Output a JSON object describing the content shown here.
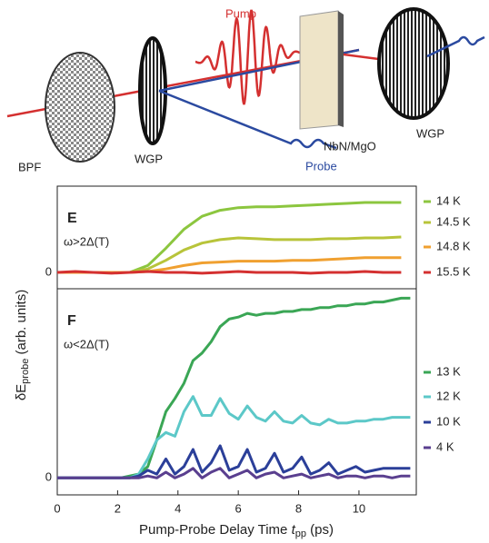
{
  "diagram": {
    "pump": "Pump",
    "bpf": "BPF",
    "wgp_left": "WGP",
    "sample": "NbN/MgO",
    "wgp_right": "WGP",
    "probe": "Probe"
  },
  "chart_data": [
    {
      "type": "line",
      "panel": "E",
      "annotation": "ω>2Δ(T)",
      "x": [
        0,
        0.6,
        1.2,
        1.8,
        2.4,
        3.0,
        3.6,
        4.2,
        4.8,
        5.4,
        6.0,
        6.6,
        7.2,
        7.8,
        8.4,
        9.0,
        9.6,
        10.2,
        10.8,
        11.4
      ],
      "xlim": [
        0,
        11.9
      ],
      "ylim": [
        -0.19,
        1
      ],
      "yticks": [
        0
      ],
      "series": [
        {
          "name": "14 K",
          "color": "#8cc63f",
          "values": [
            0,
            0,
            0,
            0,
            0,
            0.08,
            0.28,
            0.5,
            0.65,
            0.72,
            0.75,
            0.76,
            0.76,
            0.77,
            0.78,
            0.79,
            0.8,
            0.81,
            0.81,
            0.81
          ]
        },
        {
          "name": "14.5 K",
          "color": "#b8c43a",
          "values": [
            0,
            0,
            0,
            0,
            0,
            0.04,
            0.14,
            0.26,
            0.34,
            0.38,
            0.4,
            0.39,
            0.38,
            0.38,
            0.38,
            0.39,
            0.39,
            0.4,
            0.4,
            0.41
          ]
        },
        {
          "name": "14.8 K",
          "color": "#f0a030",
          "values": [
            0,
            0,
            0,
            0,
            0,
            0.01,
            0.04,
            0.08,
            0.11,
            0.12,
            0.13,
            0.13,
            0.13,
            0.14,
            0.14,
            0.15,
            0.16,
            0.17,
            0.17,
            0.17
          ]
        },
        {
          "name": "15.5 K",
          "color": "#d43030",
          "values": [
            0,
            0.01,
            0,
            -0.01,
            0,
            0.01,
            0,
            0,
            -0.01,
            0,
            0.01,
            0,
            0,
            0,
            -0.01,
            0,
            0,
            0.01,
            0,
            0
          ]
        }
      ]
    },
    {
      "type": "line",
      "panel": "F",
      "annotation": "ω<2Δ(T)",
      "x": [
        0,
        0.3,
        0.6,
        0.9,
        1.2,
        1.5,
        1.8,
        2.1,
        2.4,
        2.7,
        3.0,
        3.3,
        3.6,
        3.9,
        4.2,
        4.5,
        4.8,
        5.1,
        5.4,
        5.7,
        6.0,
        6.3,
        6.6,
        6.9,
        7.2,
        7.5,
        7.8,
        8.1,
        8.4,
        8.7,
        9.0,
        9.3,
        9.6,
        9.9,
        10.2,
        10.5,
        10.8,
        11.1,
        11.4,
        11.7
      ],
      "xlim": [
        0,
        11.9
      ],
      "xticks": [
        0,
        2,
        4,
        6,
        8,
        10
      ],
      "ylim": [
        -0.09,
        1
      ],
      "yticks": [
        0
      ],
      "xlabel": [
        "Pump-Probe Delay Time ",
        "t",
        "pp",
        " (ps)"
      ],
      "ylabel": [
        "δE",
        "probe",
        " (arb. units)"
      ],
      "series": [
        {
          "name": "13 K",
          "color": "#3aa655",
          "values": [
            0,
            0,
            0,
            0,
            0,
            0,
            0,
            0,
            0.01,
            0.02,
            0.06,
            0.2,
            0.35,
            0.42,
            0.5,
            0.62,
            0.66,
            0.72,
            0.8,
            0.84,
            0.85,
            0.87,
            0.86,
            0.87,
            0.87,
            0.88,
            0.88,
            0.89,
            0.89,
            0.9,
            0.9,
            0.91,
            0.91,
            0.92,
            0.92,
            0.93,
            0.93,
            0.94,
            0.95,
            0.95
          ]
        },
        {
          "name": "12 K",
          "color": "#5cc8c8",
          "values": [
            0,
            0,
            0,
            0,
            0,
            0,
            0,
            0,
            0,
            0.02,
            0.1,
            0.2,
            0.24,
            0.22,
            0.35,
            0.43,
            0.33,
            0.33,
            0.42,
            0.34,
            0.31,
            0.38,
            0.32,
            0.3,
            0.35,
            0.3,
            0.29,
            0.33,
            0.29,
            0.28,
            0.31,
            0.29,
            0.29,
            0.3,
            0.3,
            0.31,
            0.31,
            0.32,
            0.32,
            0.32
          ]
        },
        {
          "name": "10 K",
          "color": "#2b3f99",
          "values": [
            0,
            0,
            0,
            0,
            0,
            0,
            0,
            0,
            0,
            0.01,
            0.04,
            0.02,
            0.1,
            0.02,
            0.06,
            0.15,
            0.03,
            0.08,
            0.17,
            0.04,
            0.06,
            0.15,
            0.03,
            0.05,
            0.13,
            0.03,
            0.05,
            0.11,
            0.02,
            0.04,
            0.08,
            0.02,
            0.04,
            0.06,
            0.03,
            0.04,
            0.05,
            0.05,
            0.05,
            0.05
          ]
        },
        {
          "name": "4 K",
          "color": "#5a3f8f",
          "values": [
            0,
            0,
            0,
            0,
            0,
            0,
            0,
            0,
            0,
            0,
            0.01,
            0,
            0.03,
            0,
            0.02,
            0.05,
            0,
            0.03,
            0.05,
            0,
            0.02,
            0.04,
            0,
            0.02,
            0.03,
            0,
            0.01,
            0.02,
            0,
            0.01,
            0.02,
            0,
            0.01,
            0.01,
            0,
            0.01,
            0.01,
            0,
            0.01,
            0.01
          ]
        }
      ]
    }
  ]
}
